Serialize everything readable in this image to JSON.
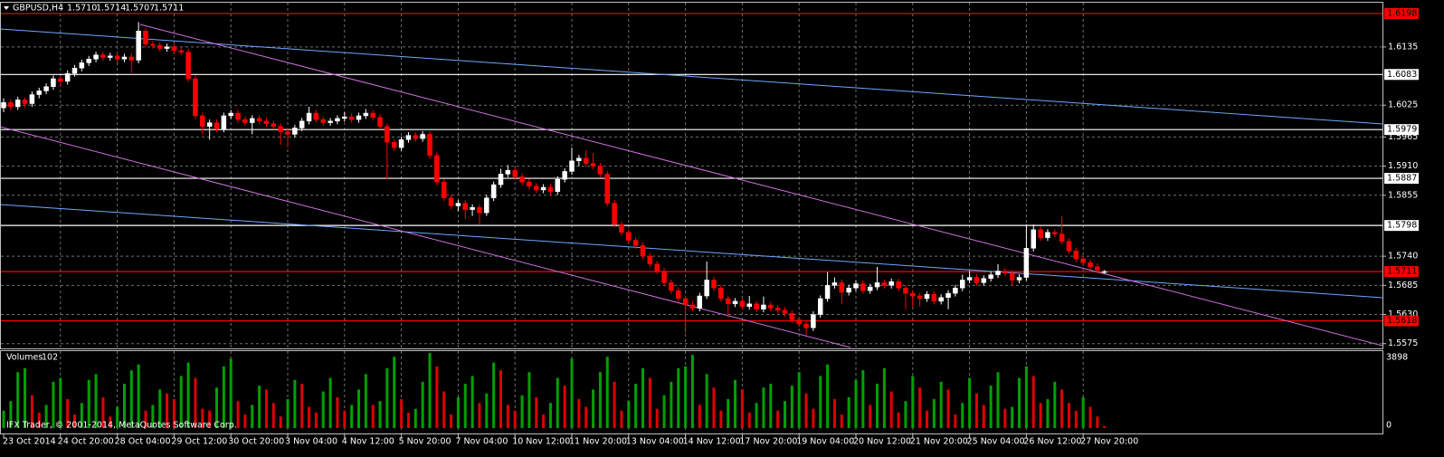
{
  "chart_data": {
    "type": "candlestick",
    "title": "GBPUSD,H4",
    "header_values": [
      {
        "value": 1.571,
        "label": "1.5710"
      },
      {
        "value": 1.5714,
        "label": "1.5714"
      },
      {
        "value": 1.5707,
        "label": "1.5707"
      },
      {
        "value": 1.5711,
        "label": "1.5711"
      }
    ],
    "volume_title": "Volumes",
    "copyright": "IFX Trader, © 2001-2014, MetaQuotes Software Corp.",
    "ylim": [
      1.5566,
      1.6215
    ],
    "yticks": [
      1.6135,
      {
        "value": 1.6025,
        "label": "1.6025"
      },
      1.5965,
      {
        "value": 1.591,
        "label": "1.5910"
      },
      1.5855,
      {
        "value": 1.574,
        "label": "1.5740"
      },
      1.5685,
      {
        "value": 1.563,
        "label": "1.5630"
      },
      1.5575
    ],
    "levels": [
      {
        "value": 1.6198,
        "color": "#ff0000"
      },
      {
        "value": 1.6083,
        "color": "#ffffff"
      },
      {
        "value": 1.5979,
        "color": "#ffffff"
      },
      {
        "value": 1.5887,
        "color": "#ffffff"
      },
      {
        "value": 1.5798,
        "color": "#ffffff"
      },
      {
        "value": 1.5711,
        "color": "#ff0000"
      },
      {
        "value": 1.5618,
        "color": "#ff0000"
      }
    ],
    "xticks": [
      {
        "value": 0,
        "label": "23 Oct 2014"
      },
      {
        "value": 8,
        "label": "24 Oct 20:00"
      },
      {
        "value": 16,
        "label": "28 Oct 04:00"
      },
      {
        "value": 24,
        "label": "29 Oct 12:00"
      },
      {
        "value": 32,
        "label": "30 Oct 20:00"
      },
      {
        "value": 40,
        "label": "3 Nov 04:00"
      },
      {
        "value": 48,
        "label": "4 Nov 12:00"
      },
      {
        "value": 56,
        "label": "5 Nov 20:00"
      },
      {
        "value": 64,
        "label": "7 Nov 04:00"
      },
      {
        "value": 72,
        "label": "10 Nov 12:00"
      },
      {
        "value": 80,
        "label": "11 Nov 20:00"
      },
      {
        "value": 88,
        "label": "13 Nov 04:00"
      },
      {
        "value": 96,
        "label": "14 Nov 12:00"
      },
      {
        "value": 104,
        "label": "17 Nov 20:00"
      },
      {
        "value": 112,
        "label": "19 Nov 04:00"
      },
      {
        "value": 120,
        "label": "20 Nov 12:00"
      },
      {
        "value": 128,
        "label": "21 Nov 20:00"
      },
      {
        "value": 136,
        "label": "25 Nov 04:00"
      },
      {
        "value": 144,
        "label": "26 Nov 12:00"
      },
      {
        "value": 152,
        "label": "27 Nov 20:00"
      }
    ],
    "grid": true,
    "up_color": "#ffffff",
    "down_color": "#ff0000",
    "volume_up_color": "#00a000",
    "volume_down_color": "#e00000",
    "ohlc": [
      [
        1.602,
        1.6038,
        1.6012,
        1.603
      ],
      [
        1.603,
        1.6036,
        1.6015,
        1.6022
      ],
      [
        1.6022,
        1.6041,
        1.6016,
        1.6035
      ],
      [
        1.6035,
        1.604,
        1.602,
        1.6028
      ],
      [
        1.6028,
        1.6051,
        1.6022,
        1.6045
      ],
      [
        1.6045,
        1.6058,
        1.6038,
        1.6052
      ],
      [
        1.6052,
        1.6066,
        1.6046,
        1.606
      ],
      [
        1.606,
        1.6081,
        1.6054,
        1.6075
      ],
      [
        1.6075,
        1.608,
        1.6063,
        1.607
      ],
      [
        1.607,
        1.6091,
        1.6064,
        1.6085
      ],
      [
        1.6085,
        1.6101,
        1.6079,
        1.6095
      ],
      [
        1.6095,
        1.6111,
        1.6089,
        1.6105
      ],
      [
        1.6105,
        1.6118,
        1.6099,
        1.6112
      ],
      [
        1.6112,
        1.6126,
        1.6106,
        1.612
      ],
      [
        1.612,
        1.6126,
        1.6109,
        1.6115
      ],
      [
        1.6115,
        1.6124,
        1.6109,
        1.6118
      ],
      [
        1.6118,
        1.6124,
        1.6106,
        1.6112
      ],
      [
        1.6112,
        1.6122,
        1.6106,
        1.6116
      ],
      [
        1.6116,
        1.6122,
        1.6086,
        1.611
      ],
      [
        1.611,
        1.6182,
        1.6104,
        1.6165
      ],
      [
        1.6165,
        1.6171,
        1.6134,
        1.614
      ],
      [
        1.614,
        1.6146,
        1.6132,
        1.6138
      ],
      [
        1.6138,
        1.6144,
        1.6126,
        1.6132
      ],
      [
        1.6132,
        1.6141,
        1.6126,
        1.6135
      ],
      [
        1.6135,
        1.6141,
        1.6122,
        1.6128
      ],
      [
        1.6128,
        1.6134,
        1.6119,
        1.6125
      ],
      [
        1.6125,
        1.6131,
        1.6069,
        1.6075
      ],
      [
        1.6075,
        1.6081,
        1.5999,
        1.6005
      ],
      [
        1.6005,
        1.6011,
        1.597,
        1.5985
      ],
      [
        1.5985,
        1.5998,
        1.596,
        1.5992
      ],
      [
        1.5992,
        1.5998,
        1.5974,
        1.598
      ],
      [
        1.598,
        1.6011,
        1.5974,
        1.6005
      ],
      [
        1.6005,
        1.6016,
        1.5999,
        1.601
      ],
      [
        1.601,
        1.6016,
        1.5992,
        1.5998
      ],
      [
        1.5998,
        1.6004,
        1.5986,
        1.5992
      ],
      [
        1.5992,
        1.6006,
        1.597,
        1.6
      ],
      [
        1.6,
        1.6006,
        1.5989,
        1.5995
      ],
      [
        1.5995,
        1.6001,
        1.5984,
        1.599
      ],
      [
        1.599,
        1.5996,
        1.5979,
        1.5985
      ],
      [
        1.5985,
        1.5991,
        1.595,
        1.5975
      ],
      [
        1.5975,
        1.5981,
        1.5945,
        1.597
      ],
      [
        1.597,
        1.5988,
        1.5964,
        1.5982
      ],
      [
        1.5982,
        1.6001,
        1.5976,
        1.5995
      ],
      [
        1.5995,
        1.6022,
        1.5989,
        1.601
      ],
      [
        1.601,
        1.6016,
        1.5992,
        1.5998
      ],
      [
        1.5998,
        1.6004,
        1.5986,
        1.5992
      ],
      [
        1.5992,
        1.6001,
        1.5986,
        1.5995
      ],
      [
        1.5995,
        1.6006,
        1.5989,
        1.6
      ],
      [
        1.6,
        1.6012,
        1.5994,
        1.6003
      ],
      [
        1.6003,
        1.6009,
        1.5992,
        1.5998
      ],
      [
        1.5998,
        1.6011,
        1.5992,
        1.6005
      ],
      [
        1.6005,
        1.6018,
        1.5999,
        1.601
      ],
      [
        1.601,
        1.6016,
        1.5996,
        1.6002
      ],
      [
        1.6002,
        1.6008,
        1.5979,
        1.5985
      ],
      [
        1.5985,
        1.5991,
        1.5885,
        1.5955
      ],
      [
        1.5955,
        1.5961,
        1.5939,
        1.5945
      ],
      [
        1.5945,
        1.5966,
        1.5939,
        1.596
      ],
      [
        1.596,
        1.5974,
        1.5954,
        1.5968
      ],
      [
        1.5968,
        1.5974,
        1.5956,
        1.5962
      ],
      [
        1.5962,
        1.5976,
        1.5956,
        1.597
      ],
      [
        1.597,
        1.5976,
        1.5924,
        1.593
      ],
      [
        1.593,
        1.5936,
        1.5874,
        1.588
      ],
      [
        1.588,
        1.5886,
        1.5844,
        1.585
      ],
      [
        1.585,
        1.5856,
        1.5829,
        1.5835
      ],
      [
        1.5835,
        1.5846,
        1.5825,
        1.584
      ],
      [
        1.584,
        1.5846,
        1.581,
        1.5828
      ],
      [
        1.5828,
        1.5838,
        1.5816,
        1.5832
      ],
      [
        1.5832,
        1.5838,
        1.58,
        1.5822
      ],
      [
        1.5822,
        1.5856,
        1.5816,
        1.585
      ],
      [
        1.585,
        1.5881,
        1.5844,
        1.5875
      ],
      [
        1.5875,
        1.5905,
        1.5869,
        1.5895
      ],
      [
        1.5895,
        1.5912,
        1.5889,
        1.5902
      ],
      [
        1.5902,
        1.5908,
        1.5884,
        1.589
      ],
      [
        1.589,
        1.5896,
        1.5874,
        1.588
      ],
      [
        1.588,
        1.5886,
        1.5866,
        1.5872
      ],
      [
        1.5872,
        1.5878,
        1.5859,
        1.5865
      ],
      [
        1.5865,
        1.5876,
        1.5859,
        1.587
      ],
      [
        1.587,
        1.5876,
        1.5856,
        1.5862
      ],
      [
        1.5862,
        1.5891,
        1.5856,
        1.5885
      ],
      [
        1.5885,
        1.5906,
        1.5879,
        1.59
      ],
      [
        1.59,
        1.5945,
        1.5894,
        1.592
      ],
      [
        1.592,
        1.5931,
        1.591,
        1.5925
      ],
      [
        1.5925,
        1.594,
        1.5909,
        1.5915
      ],
      [
        1.5915,
        1.5935,
        1.5904,
        1.591
      ],
      [
        1.591,
        1.5916,
        1.5889,
        1.5895
      ],
      [
        1.5895,
        1.5901,
        1.5834,
        1.584
      ],
      [
        1.584,
        1.5846,
        1.5794,
        1.58
      ],
      [
        1.58,
        1.5806,
        1.5779,
        1.5785
      ],
      [
        1.5785,
        1.5791,
        1.5764,
        1.577
      ],
      [
        1.577,
        1.5776,
        1.5754,
        1.576
      ],
      [
        1.576,
        1.5766,
        1.5734,
        1.574
      ],
      [
        1.574,
        1.5746,
        1.5719,
        1.5725
      ],
      [
        1.5725,
        1.5731,
        1.5706,
        1.5712
      ],
      [
        1.5712,
        1.5718,
        1.5684,
        1.569
      ],
      [
        1.569,
        1.5696,
        1.5669,
        1.5675
      ],
      [
        1.5675,
        1.5681,
        1.5654,
        1.566
      ],
      [
        1.566,
        1.5666,
        1.5595,
        1.5648
      ],
      [
        1.5648,
        1.5654,
        1.5636,
        1.5642
      ],
      [
        1.5642,
        1.5671,
        1.5636,
        1.5665
      ],
      [
        1.5665,
        1.573,
        1.5659,
        1.5695
      ],
      [
        1.5695,
        1.5701,
        1.5674,
        1.568
      ],
      [
        1.568,
        1.5686,
        1.5654,
        1.566
      ],
      [
        1.566,
        1.5666,
        1.5625,
        1.565
      ],
      [
        1.565,
        1.5661,
        1.5644,
        1.5655
      ],
      [
        1.5655,
        1.5661,
        1.5639,
        1.5645
      ],
      [
        1.5645,
        1.5665,
        1.5639,
        1.565
      ],
      [
        1.565,
        1.5656,
        1.5634,
        1.564
      ],
      [
        1.564,
        1.5664,
        1.5634,
        1.5648
      ],
      [
        1.5648,
        1.5654,
        1.5636,
        1.5642
      ],
      [
        1.5642,
        1.5648,
        1.5632,
        1.5638
      ],
      [
        1.5638,
        1.5644,
        1.5626,
        1.5632
      ],
      [
        1.5632,
        1.5638,
        1.5614,
        1.562
      ],
      [
        1.562,
        1.5626,
        1.5606,
        1.5612
      ],
      [
        1.5612,
        1.5618,
        1.559,
        1.5605
      ],
      [
        1.5605,
        1.5636,
        1.5599,
        1.563
      ],
      [
        1.563,
        1.5666,
        1.5624,
        1.566
      ],
      [
        1.566,
        1.571,
        1.5654,
        1.5685
      ],
      [
        1.5685,
        1.57,
        1.5679,
        1.569
      ],
      [
        1.569,
        1.5696,
        1.565,
        1.5672
      ],
      [
        1.5672,
        1.5686,
        1.5666,
        1.568
      ],
      [
        1.568,
        1.5694,
        1.5674,
        1.5688
      ],
      [
        1.5688,
        1.5694,
        1.5669,
        1.5675
      ],
      [
        1.5675,
        1.5688,
        1.5669,
        1.5682
      ],
      [
        1.5682,
        1.572,
        1.5676,
        1.569
      ],
      [
        1.569,
        1.5696,
        1.5679,
        1.5685
      ],
      [
        1.5685,
        1.5698,
        1.5679,
        1.5692
      ],
      [
        1.5692,
        1.5698,
        1.5674,
        1.568
      ],
      [
        1.568,
        1.5686,
        1.564,
        1.567
      ],
      [
        1.567,
        1.5676,
        1.5645,
        1.5665
      ],
      [
        1.5665,
        1.5671,
        1.5645,
        1.566
      ],
      [
        1.566,
        1.5674,
        1.5654,
        1.5668
      ],
      [
        1.5668,
        1.5674,
        1.5649,
        1.5655
      ],
      [
        1.5655,
        1.5668,
        1.5649,
        1.5662
      ],
      [
        1.5662,
        1.5676,
        1.564,
        1.567
      ],
      [
        1.567,
        1.5686,
        1.5664,
        1.568
      ],
      [
        1.568,
        1.5705,
        1.5674,
        1.5695
      ],
      [
        1.5695,
        1.5712,
        1.5689,
        1.57
      ],
      [
        1.57,
        1.5706,
        1.5684,
        1.569
      ],
      [
        1.569,
        1.5704,
        1.5684,
        1.5698
      ],
      [
        1.5698,
        1.5711,
        1.5692,
        1.5705
      ],
      [
        1.5705,
        1.5725,
        1.5699,
        1.5712
      ],
      [
        1.5712,
        1.5718,
        1.5702,
        1.5708
      ],
      [
        1.5708,
        1.5714,
        1.5685,
        1.5695
      ],
      [
        1.5695,
        1.5706,
        1.5689,
        1.57
      ],
      [
        1.57,
        1.58,
        1.5694,
        1.5755
      ],
      [
        1.5755,
        1.58,
        1.5749,
        1.579
      ],
      [
        1.579,
        1.5796,
        1.5769,
        1.5775
      ],
      [
        1.5775,
        1.5791,
        1.5769,
        1.5785
      ],
      [
        1.5785,
        1.5791,
        1.5776,
        1.5782
      ],
      [
        1.5782,
        1.5815,
        1.5762,
        1.5768
      ],
      [
        1.5768,
        1.5774,
        1.5744,
        1.575
      ],
      [
        1.575,
        1.5756,
        1.5729,
        1.5735
      ],
      [
        1.5735,
        1.5741,
        1.5722,
        1.5728
      ],
      [
        1.5728,
        1.5734,
        1.5714,
        1.572
      ],
      [
        1.572,
        1.5726,
        1.5708,
        1.5714
      ],
      [
        1.571,
        1.5714,
        1.5707,
        1.5711
      ]
    ],
    "volume": [
      900,
      1400,
      2900,
      3100,
      1700,
      800,
      1200,
      2400,
      2600,
      1500,
      700,
      1300,
      2500,
      2800,
      1600,
      600,
      1100,
      2300,
      3000,
      3300,
      900,
      1200,
      2000,
      1800,
      1500,
      2700,
      3400,
      2600,
      1000,
      900,
      2100,
      3200,
      3600,
      1400,
      700,
      1200,
      2200,
      2000,
      1300,
      600,
      1500,
      2500,
      2300,
      1100,
      800,
      1900,
      2600,
      1600,
      900,
      1200,
      2000,
      2800,
      1200,
      1400,
      3100,
      3700,
      1500,
      800,
      1000,
      2400,
      3898,
      3200,
      1900,
      700,
      1600,
      2300,
      2700,
      1300,
      1800,
      3400,
      3000,
      1200,
      900,
      1700,
      2900,
      1600,
      700,
      1300,
      2600,
      2200,
      3600,
      1500,
      1100,
      2000,
      2900,
      3700,
      2400,
      900,
      1400,
      2300,
      3100,
      2600,
      1000,
      1700,
      2400,
      3100,
      3200,
      3800,
      1200,
      2800,
      2100,
      900,
      1500,
      2500,
      2000,
      800,
      1300,
      2100,
      2300,
      900,
      1400,
      2200,
      2900,
      1800,
      1000,
      2700,
      3300,
      1500,
      700,
      1600,
      2500,
      3000,
      1200,
      2300,
      3100,
      1900,
      800,
      1400,
      2700,
      2100,
      900,
      1500,
      2400,
      2000,
      700,
      1300,
      2600,
      1800,
      1200,
      2200,
      2900,
      1000,
      1100,
      2600,
      3200,
      2700,
      1300,
      1500,
      2400,
      2000,
      1300,
      900,
      1600,
      1100,
      600,
      102
    ],
    "volume_ylim": [
      0,
      3898
    ],
    "volume_yticks": [
      0,
      3898
    ]
  }
}
